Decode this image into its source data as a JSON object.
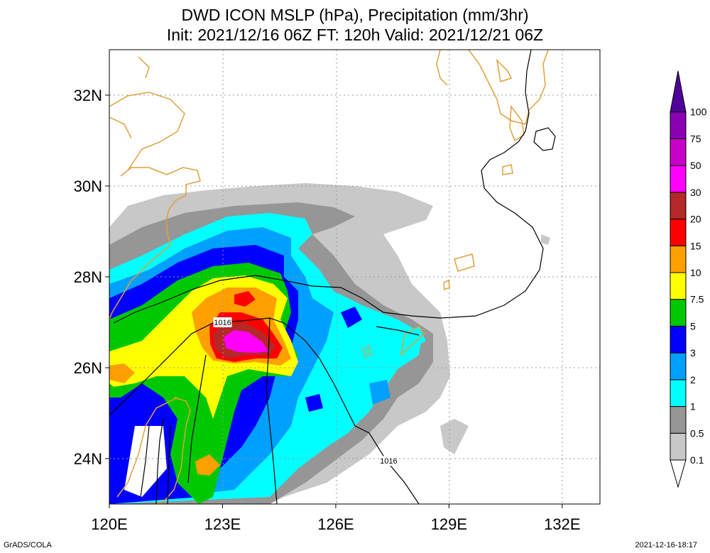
{
  "title_line1": "DWD ICON MSLP (hPa), Precipitation (mm/3hr)",
  "title_line2": "Init: 2021/12/16 06Z  FT: 120h  Valid: 2021/12/21 06Z",
  "axes": {
    "lon_range": [
      120,
      133
    ],
    "lat_range": [
      23,
      33
    ],
    "x_ticks": [
      {
        "value": 120,
        "label": "120E"
      },
      {
        "value": 123,
        "label": "123E"
      },
      {
        "value": 126,
        "label": "126E"
      },
      {
        "value": 129,
        "label": "129E"
      },
      {
        "value": 132,
        "label": "132E"
      }
    ],
    "y_ticks": [
      {
        "value": 24,
        "label": "24N"
      },
      {
        "value": 26,
        "label": "26N"
      },
      {
        "value": 28,
        "label": "28N"
      },
      {
        "value": 30,
        "label": "30N"
      },
      {
        "value": 32,
        "label": "32N"
      }
    ]
  },
  "colorbar": {
    "levels": [
      {
        "label": "0.1",
        "color": "#c8c8c8"
      },
      {
        "label": "0.5",
        "color": "#969696"
      },
      {
        "label": "1",
        "color": "#00ffff"
      },
      {
        "label": "2",
        "color": "#00a0ff"
      },
      {
        "label": "3",
        "color": "#0000ff"
      },
      {
        "label": "5",
        "color": "#00c800"
      },
      {
        "label": "7.5",
        "color": "#ffff00"
      },
      {
        "label": "10",
        "color": "#ffa000"
      },
      {
        "label": "15",
        "color": "#ff0000"
      },
      {
        "label": "20",
        "color": "#b42828"
      },
      {
        "label": "30",
        "color": "#ff00ff"
      },
      {
        "label": "50",
        "color": "#c800c8"
      },
      {
        "label": "75",
        "color": "#8c00b4"
      },
      {
        "label": "100",
        "color": "#50009b"
      }
    ]
  },
  "isobar_labels": [
    {
      "text": "1016",
      "lon": 123.0,
      "lat": 27.0
    },
    {
      "text": "1016",
      "lon": 127.4,
      "lat": 23.95
    }
  ],
  "footer": {
    "left": "GrADS/COLA",
    "right": "2021-12-16-18:17"
  }
}
